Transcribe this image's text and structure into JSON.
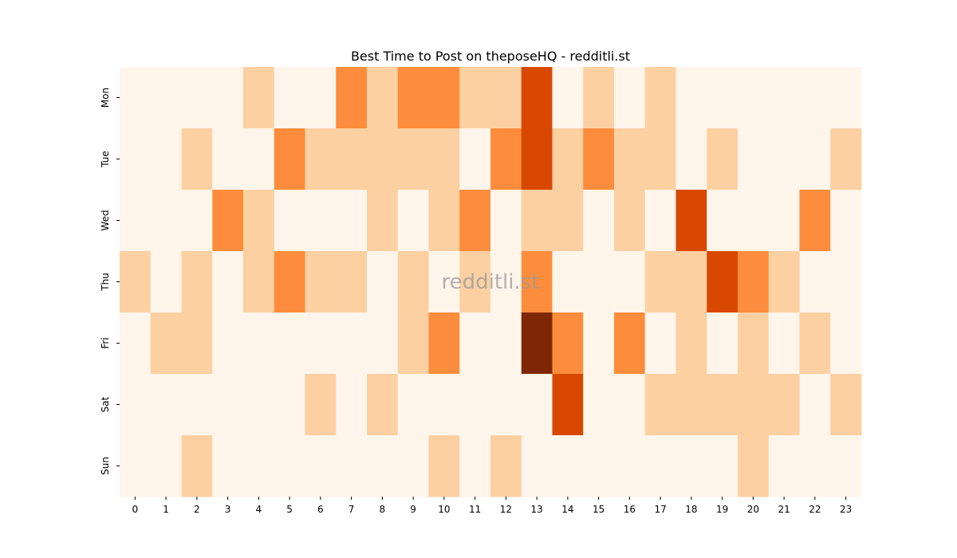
{
  "chart_data": {
    "type": "heatmap",
    "title": "Best Time to Post on theposeHQ - redditli.st",
    "watermark": "redditli.st",
    "x": [
      0,
      1,
      2,
      3,
      4,
      5,
      6,
      7,
      8,
      9,
      10,
      11,
      12,
      13,
      14,
      15,
      16,
      17,
      18,
      19,
      20,
      21,
      22,
      23
    ],
    "y": [
      "Mon",
      "Tue",
      "Wed",
      "Thu",
      "Fri",
      "Sat",
      "Sun"
    ],
    "values": [
      [
        0,
        0,
        0,
        0,
        1,
        0,
        0,
        2,
        1,
        2,
        2,
        1,
        1,
        3,
        0,
        1,
        0,
        1,
        0,
        0,
        0,
        0,
        0,
        0
      ],
      [
        0,
        0,
        1,
        0,
        0,
        2,
        1,
        1,
        1,
        1,
        1,
        0,
        2,
        3,
        1,
        2,
        1,
        1,
        0,
        1,
        0,
        0,
        0,
        1
      ],
      [
        0,
        0,
        0,
        2,
        1,
        0,
        0,
        0,
        1,
        0,
        1,
        2,
        0,
        1,
        1,
        0,
        1,
        0,
        3,
        0,
        0,
        0,
        2,
        0
      ],
      [
        1,
        0,
        1,
        0,
        1,
        2,
        1,
        1,
        0,
        1,
        0,
        1,
        0,
        2,
        0,
        0,
        0,
        1,
        1,
        3,
        2,
        1,
        0,
        0
      ],
      [
        0,
        1,
        1,
        0,
        0,
        0,
        0,
        0,
        0,
        1,
        2,
        0,
        0,
        4,
        2,
        0,
        2,
        0,
        1,
        0,
        1,
        0,
        1,
        0
      ],
      [
        0,
        0,
        0,
        0,
        0,
        0,
        1,
        0,
        1,
        0,
        0,
        0,
        0,
        0,
        3,
        0,
        0,
        1,
        1,
        1,
        1,
        1,
        0,
        1
      ],
      [
        0,
        0,
        1,
        0,
        0,
        0,
        0,
        0,
        0,
        0,
        1,
        0,
        1,
        0,
        0,
        0,
        0,
        0,
        0,
        0,
        1,
        0,
        0,
        0
      ]
    ],
    "zlim": [
      0,
      4
    ],
    "colorscale": [
      "#fff5eb",
      "#fdd0a2",
      "#fd8d3c",
      "#d94801",
      "#7f2704"
    ]
  }
}
